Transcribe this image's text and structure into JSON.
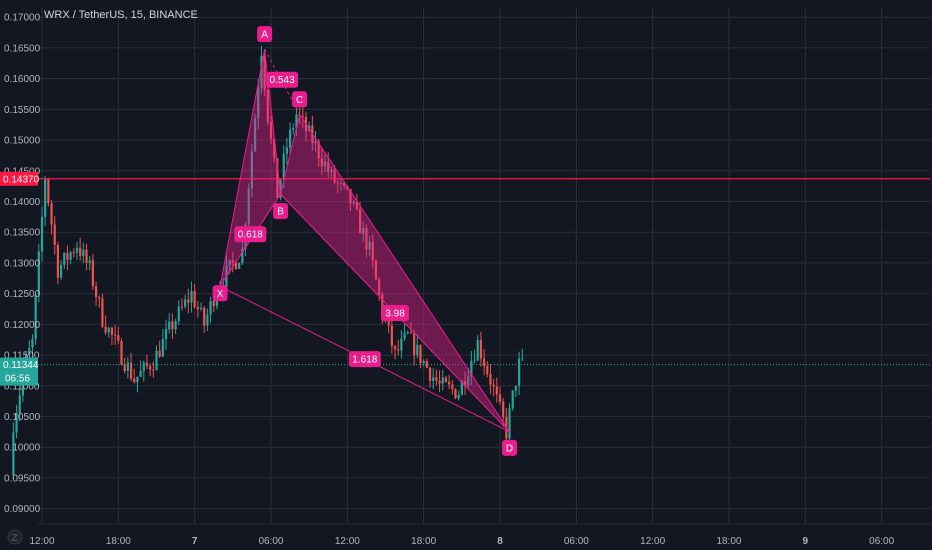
{
  "header": {
    "symbol": "WRX / TetherUS, 15, BINANCE"
  },
  "colors": {
    "background": "#131722",
    "grid": "#2a2e39",
    "up": "#26a69a",
    "down": "#ef5350",
    "pattern": "#e91e8c",
    "pattern_fill": "rgba(233, 30, 140, 0.42)",
    "resistance": "#ff1744",
    "current_price": "#26a69a"
  },
  "chart_data": {
    "type": "candlestick",
    "title": "WRX / TetherUS, 15, BINANCE",
    "y_ticks": [
      "0.17000",
      "0.16500",
      "0.16000",
      "0.15500",
      "0.15000",
      "0.14500",
      "0.14000",
      "0.13500",
      "0.13000",
      "0.12500",
      "0.12000",
      "0.11500",
      "0.11000",
      "0.10500",
      "0.10000",
      "0.09500",
      "0.09000"
    ],
    "x_ticks": [
      "12:00",
      "18:00",
      "7",
      "06:00",
      "12:00",
      "18:00",
      "8",
      "06:00",
      "12:00",
      "18:00",
      "9",
      "06:00"
    ],
    "ylim": [
      0.0875,
      0.1715
    ],
    "horizontal_line": {
      "price": 0.1437,
      "label": "0.14370"
    },
    "current_price": {
      "price": 0.11344,
      "label": "0.11344",
      "countdown": "06:56"
    },
    "harmonic_pattern": {
      "points": [
        {
          "label": "X",
          "time": "7 02:00",
          "price": 0.1262
        },
        {
          "label": "A",
          "time": "7 05:30",
          "price": 0.1648
        },
        {
          "label": "B",
          "time": "7 06:45",
          "price": 0.1412
        },
        {
          "label": "C",
          "time": "7 08:15",
          "price": 0.1542
        },
        {
          "label": "D",
          "time": "8 00:45",
          "price": 0.1025
        }
      ],
      "ratios": [
        "0.618",
        "0.543",
        "3.98",
        "1.618"
      ]
    },
    "price_path": [
      [
        "6 09:45",
        0.0955
      ],
      [
        "6 10:00",
        0.104
      ],
      [
        "6 11:00",
        0.114
      ],
      [
        "6 11:30",
        0.117
      ],
      [
        "6 12:30",
        0.144
      ],
      [
        "6 13:30",
        0.129
      ],
      [
        "6 15:00",
        0.133
      ],
      [
        "6 16:00",
        0.129
      ],
      [
        "6 17:00",
        0.121
      ],
      [
        "6 18:30",
        0.115
      ],
      [
        "6 19:30",
        0.111
      ],
      [
        "6 21:00",
        0.114
      ],
      [
        "6 22:30",
        0.12
      ],
      [
        "7 00:00",
        0.125
      ],
      [
        "7 01:00",
        0.12
      ],
      [
        "7 02:00",
        0.126
      ],
      [
        "7 03:00",
        0.129
      ],
      [
        "7 04:00",
        0.132
      ],
      [
        "7 05:30",
        0.1648
      ],
      [
        "7 06:00",
        0.154
      ],
      [
        "7 06:45",
        0.1412
      ],
      [
        "7 07:30",
        0.149
      ],
      [
        "7 08:15",
        0.1542
      ],
      [
        "7 09:30",
        0.15
      ],
      [
        "7 11:00",
        0.144
      ],
      [
        "7 12:30",
        0.14
      ],
      [
        "7 14:00",
        0.132
      ],
      [
        "7 15:00",
        0.122
      ],
      [
        "7 16:00",
        0.115
      ],
      [
        "7 17:00",
        0.118
      ],
      [
        "7 18:30",
        0.113
      ],
      [
        "7 19:30",
        0.11
      ],
      [
        "7 21:00",
        0.109
      ],
      [
        "7 22:30",
        0.117
      ],
      [
        "7 23:30",
        0.111
      ],
      [
        "8 00:45",
        0.1025
      ],
      [
        "8 01:30",
        0.111
      ],
      [
        "8 01:45",
        0.1134
      ]
    ]
  }
}
